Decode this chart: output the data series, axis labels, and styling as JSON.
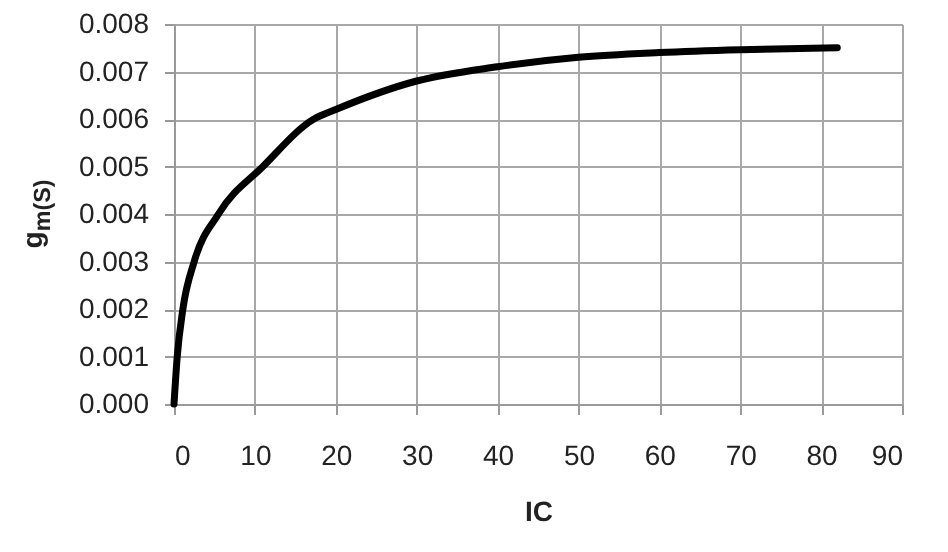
{
  "chart_data": {
    "type": "line",
    "xlabel": "IC",
    "ylabel": "g$_{m(S)}$",
    "x": [
      0,
      0.4,
      1.1,
      2.5,
      5.5,
      11,
      17.3,
      20,
      30,
      40,
      50,
      60,
      70,
      82
    ],
    "series": [
      {
        "color": "#000000",
        "values": [
          0,
          0.001,
          0.002,
          0.003,
          0.004,
          0.005,
          0.006,
          0.0062,
          0.0068,
          0.0071,
          0.0073,
          0.0074,
          0.00746,
          0.0075
        ]
      }
    ],
    "xlim": [
      0,
      90
    ],
    "xticks": [
      0,
      10,
      20,
      30,
      40,
      50,
      60,
      70,
      80,
      90
    ],
    "ylim": [
      0,
      0.008
    ],
    "yticks": [
      {
        "value": 0,
        "label": "0.000"
      },
      {
        "value": 0.001,
        "label": "0.001"
      },
      {
        "value": 0.002,
        "label": "0.002"
      },
      {
        "value": 0.003,
        "label": "0.003"
      },
      {
        "value": 0.004,
        "label": "0.004"
      },
      {
        "value": 0.005,
        "label": "0.005"
      },
      {
        "value": 0.006,
        "label": "0.006"
      },
      {
        "value": 0.007,
        "label": "0.007"
      },
      {
        "value": 0.008,
        "label": "0.008"
      }
    ],
    "grid": true
  }
}
